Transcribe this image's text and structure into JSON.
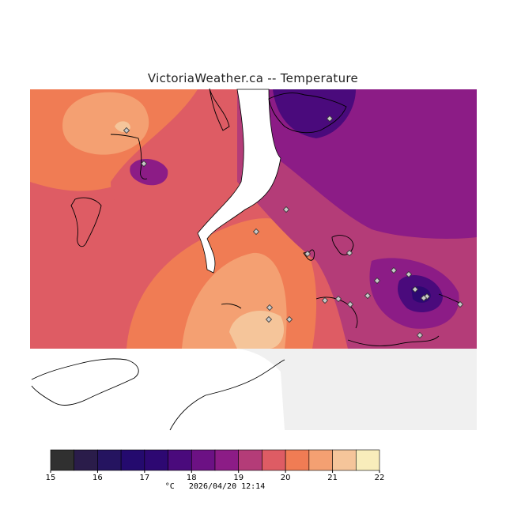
{
  "title": "VictoriaWeather.ca -- Temperature",
  "legend": {
    "ticks": [
      "15",
      "16",
      "17",
      "18",
      "19",
      "20",
      "21",
      "22"
    ],
    "colors": [
      "#303030",
      "#2a1c4a",
      "#251460",
      "#240a6e",
      "#2d0872",
      "#4a0a7c",
      "#6c1184",
      "#8c1c86",
      "#b43c78",
      "#de5c64",
      "#f07c54",
      "#f4a072",
      "#f5c59a",
      "#f8edbb"
    ],
    "unit": "°C",
    "timestamp": "2026/04/20 12:14"
  },
  "colors": {
    "land_outside": "#f0f0f0",
    "water": "#ffffff",
    "coast": "#000000"
  },
  "stations": [
    "station"
  ]
}
